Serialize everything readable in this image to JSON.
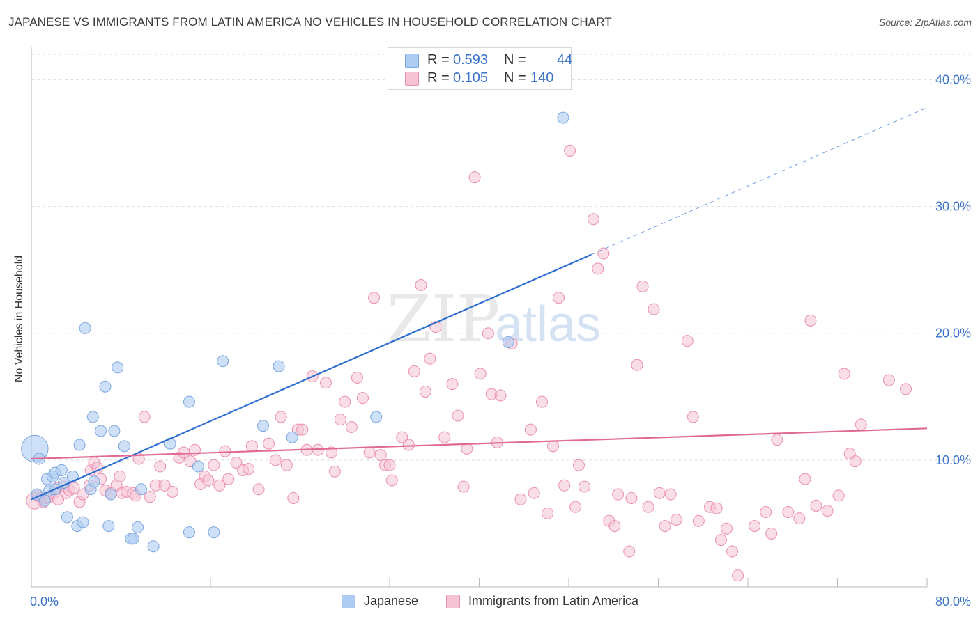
{
  "title": "JAPANESE VS IMMIGRANTS FROM LATIN AMERICA NO VEHICLES IN HOUSEHOLD CORRELATION CHART",
  "source": "Source: ZipAtlas.com",
  "watermark": {
    "zip": "ZIP",
    "atlas": "atlas"
  },
  "legend": {
    "rows": [
      {
        "r_label": "R =",
        "r_value": "0.593",
        "n_label": "N =",
        "n_value": "44"
      },
      {
        "r_label": "R =",
        "r_value": "0.105",
        "n_label": "N =",
        "n_value": "140"
      }
    ]
  },
  "colors": {
    "japanese_fill": "#aecbf1",
    "japanese_stroke": "#7aa6e0",
    "japanese_line": "#2e6fcf",
    "latin_fill": "#f6c3d4",
    "latin_stroke": "#ea8fae",
    "latin_line": "#e06a93",
    "tick_label": "#3a72c9",
    "grid": "#dddddd"
  },
  "chart_data": {
    "type": "scatter",
    "title": "JAPANESE VS IMMIGRANTS FROM LATIN AMERICA NO VEHICLES IN HOUSEHOLD CORRELATION CHART",
    "xlabel": "",
    "ylabel": "No Vehicles in Household",
    "xlim": [
      0,
      80
    ],
    "ylim": [
      0,
      42
    ],
    "x_tick_labels": [
      "0.0%",
      "80.0%"
    ],
    "y_ticks": [
      10,
      20,
      30,
      40
    ],
    "y_tick_labels": [
      "10.0%",
      "20.0%",
      "30.0%",
      "40.0%"
    ],
    "grid": true,
    "legend_position": "top-center",
    "series": [
      {
        "name": "Japanese",
        "r": 0.593,
        "n": 44,
        "trend": {
          "x0": 0,
          "y0": 6.9,
          "x1": 50,
          "y1": 26.2,
          "dashed_to_x": 80,
          "dashed_to_y": 37.8
        },
        "points": [
          [
            0.3,
            10.9,
            2.4
          ],
          [
            0.7,
            10.1,
            1
          ],
          [
            0.5,
            7.3,
            1
          ],
          [
            1.2,
            6.8,
            1
          ],
          [
            1.4,
            8.5,
            1
          ],
          [
            1.6,
            7.6,
            1
          ],
          [
            1.9,
            8.7,
            1
          ],
          [
            2.1,
            9.0,
            1
          ],
          [
            2.1,
            7.7,
            1
          ],
          [
            2.7,
            9.2,
            1
          ],
          [
            2.9,
            8.2,
            1
          ],
          [
            3.2,
            5.5,
            1
          ],
          [
            3.7,
            8.7,
            1
          ],
          [
            4.1,
            4.8,
            1
          ],
          [
            4.3,
            11.2,
            1
          ],
          [
            4.6,
            5.1,
            1
          ],
          [
            4.8,
            20.4,
            1
          ],
          [
            5.3,
            7.7,
            1
          ],
          [
            5.5,
            13.4,
            1
          ],
          [
            5.6,
            8.3,
            1
          ],
          [
            6.2,
            12.3,
            1
          ],
          [
            6.6,
            15.8,
            1
          ],
          [
            6.9,
            4.8,
            1
          ],
          [
            7.1,
            7.3,
            1
          ],
          [
            7.4,
            12.3,
            1
          ],
          [
            7.7,
            17.3,
            1
          ],
          [
            8.3,
            11.1,
            1
          ],
          [
            8.9,
            3.8,
            1
          ],
          [
            9.1,
            3.8,
            1
          ],
          [
            9.5,
            4.7,
            1
          ],
          [
            9.8,
            7.7,
            1
          ],
          [
            10.9,
            3.2,
            1
          ],
          [
            12.4,
            11.3,
            1
          ],
          [
            14.1,
            14.6,
            1
          ],
          [
            14.1,
            4.3,
            1
          ],
          [
            14.9,
            9.5,
            1
          ],
          [
            16.3,
            4.3,
            1
          ],
          [
            17.1,
            17.8,
            1
          ],
          [
            20.7,
            12.7,
            1
          ],
          [
            22.1,
            17.4,
            1
          ],
          [
            23.3,
            11.8,
            1
          ],
          [
            30.8,
            13.4,
            1
          ],
          [
            42.6,
            19.3,
            1
          ],
          [
            47.5,
            37.0,
            1
          ]
        ]
      },
      {
        "name": "Immigrants from Latin America",
        "r": 0.105,
        "n": 140,
        "trend": {
          "x0": 0,
          "y0": 10.1,
          "x1": 80,
          "y1": 12.5
        },
        "points": [
          [
            0.3,
            6.8,
            1.5
          ],
          [
            0.6,
            7.2,
            1
          ],
          [
            0.9,
            7.0,
            1
          ],
          [
            1.1,
            6.7,
            1
          ],
          [
            1.3,
            7.0,
            1
          ],
          [
            1.6,
            7.1,
            1
          ],
          [
            2.0,
            7.4,
            1
          ],
          [
            2.3,
            7.8,
            1
          ],
          [
            2.4,
            6.9,
            1
          ],
          [
            2.9,
            7.9,
            1
          ],
          [
            3.1,
            7.4,
            1
          ],
          [
            3.4,
            7.6,
            1
          ],
          [
            3.8,
            7.8,
            1
          ],
          [
            4.3,
            6.7,
            1
          ],
          [
            4.6,
            7.3,
            1
          ],
          [
            5.2,
            8.0,
            1
          ],
          [
            5.3,
            9.2,
            1
          ],
          [
            5.6,
            9.8,
            1
          ],
          [
            5.9,
            9.4,
            1
          ],
          [
            6.2,
            8.5,
            1
          ],
          [
            6.6,
            7.6,
            1
          ],
          [
            7.1,
            7.4,
            1
          ],
          [
            7.6,
            8.0,
            1
          ],
          [
            7.9,
            8.7,
            1
          ],
          [
            8.1,
            7.4,
            1
          ],
          [
            8.5,
            7.5,
            1
          ],
          [
            9.1,
            7.4,
            1
          ],
          [
            9.3,
            7.2,
            1
          ],
          [
            9.6,
            10.1,
            1
          ],
          [
            10.1,
            13.4,
            1
          ],
          [
            10.6,
            7.1,
            1
          ],
          [
            11.1,
            8.0,
            1
          ],
          [
            11.5,
            9.5,
            1
          ],
          [
            11.9,
            8.0,
            1
          ],
          [
            12.6,
            7.5,
            1
          ],
          [
            13.2,
            10.2,
            1
          ],
          [
            13.6,
            10.6,
            1
          ],
          [
            14.2,
            9.9,
            1
          ],
          [
            14.6,
            10.8,
            1
          ],
          [
            15.1,
            8.1,
            1
          ],
          [
            15.5,
            8.7,
            1
          ],
          [
            15.8,
            8.4,
            1
          ],
          [
            16.3,
            9.6,
            1
          ],
          [
            16.8,
            8.0,
            1
          ],
          [
            17.3,
            10.7,
            1
          ],
          [
            17.6,
            8.5,
            1
          ],
          [
            18.3,
            9.8,
            1
          ],
          [
            18.9,
            9.2,
            1
          ],
          [
            19.4,
            9.3,
            1
          ],
          [
            19.7,
            11.1,
            1
          ],
          [
            20.3,
            7.7,
            1
          ],
          [
            21.2,
            11.3,
            1
          ],
          [
            21.8,
            10.0,
            1
          ],
          [
            22.3,
            13.4,
            1
          ],
          [
            22.8,
            9.6,
            1
          ],
          [
            23.4,
            7.0,
            1
          ],
          [
            23.8,
            12.4,
            1
          ],
          [
            24.2,
            12.4,
            1
          ],
          [
            24.6,
            10.8,
            1
          ],
          [
            25.1,
            16.6,
            1
          ],
          [
            25.6,
            10.8,
            1
          ],
          [
            26.3,
            16.1,
            1
          ],
          [
            26.8,
            10.6,
            1
          ],
          [
            27.1,
            9.1,
            1
          ],
          [
            27.6,
            13.2,
            1
          ],
          [
            28.0,
            14.6,
            1
          ],
          [
            28.6,
            12.6,
            1
          ],
          [
            29.1,
            16.5,
            1
          ],
          [
            29.6,
            14.9,
            1
          ],
          [
            30.2,
            10.6,
            1
          ],
          [
            30.6,
            22.8,
            1
          ],
          [
            31.2,
            10.4,
            1
          ],
          [
            31.6,
            9.6,
            1
          ],
          [
            32.0,
            9.6,
            1
          ],
          [
            32.2,
            8.4,
            1
          ],
          [
            33.1,
            11.8,
            1
          ],
          [
            33.7,
            11.2,
            1
          ],
          [
            34.2,
            17.0,
            1
          ],
          [
            34.8,
            23.8,
            1
          ],
          [
            35.2,
            15.4,
            1
          ],
          [
            35.6,
            18.0,
            1
          ],
          [
            36.1,
            20.5,
            1
          ],
          [
            36.9,
            11.8,
            1
          ],
          [
            37.6,
            16.0,
            1
          ],
          [
            38.1,
            13.5,
            1
          ],
          [
            38.6,
            7.9,
            1
          ],
          [
            38.9,
            10.9,
            1
          ],
          [
            39.6,
            32.3,
            1
          ],
          [
            40.1,
            16.8,
            1
          ],
          [
            40.8,
            20.0,
            1
          ],
          [
            41.1,
            15.2,
            1
          ],
          [
            41.6,
            11.4,
            1
          ],
          [
            41.9,
            15.1,
            1
          ],
          [
            42.9,
            19.2,
            1
          ],
          [
            43.7,
            6.9,
            1
          ],
          [
            44.6,
            12.4,
            1
          ],
          [
            44.9,
            7.4,
            1
          ],
          [
            45.6,
            14.6,
            1
          ],
          [
            46.1,
            5.8,
            1
          ],
          [
            46.6,
            11.1,
            1
          ],
          [
            47.1,
            22.8,
            1
          ],
          [
            47.6,
            8.0,
            1
          ],
          [
            48.1,
            34.4,
            1
          ],
          [
            48.6,
            6.3,
            1
          ],
          [
            48.9,
            9.6,
            1
          ],
          [
            49.4,
            7.9,
            1
          ],
          [
            50.2,
            29.0,
            1
          ],
          [
            50.6,
            25.1,
            1
          ],
          [
            51.1,
            26.3,
            1
          ],
          [
            51.6,
            5.2,
            1
          ],
          [
            52.1,
            4.8,
            1
          ],
          [
            52.4,
            7.3,
            1
          ],
          [
            53.4,
            2.8,
            1
          ],
          [
            53.6,
            7.0,
            1
          ],
          [
            54.1,
            17.5,
            1
          ],
          [
            54.6,
            23.7,
            1
          ],
          [
            55.1,
            6.3,
            1
          ],
          [
            55.6,
            21.9,
            1
          ],
          [
            56.1,
            7.4,
            1
          ],
          [
            56.6,
            4.8,
            1
          ],
          [
            57.1,
            7.3,
            1
          ],
          [
            57.6,
            5.3,
            1
          ],
          [
            58.6,
            19.4,
            1
          ],
          [
            59.1,
            13.4,
            1
          ],
          [
            59.6,
            5.2,
            1
          ],
          [
            60.6,
            6.3,
            1
          ],
          [
            61.2,
            6.2,
            1
          ],
          [
            61.6,
            3.7,
            1
          ],
          [
            62.1,
            4.6,
            1
          ],
          [
            62.6,
            2.8,
            1
          ],
          [
            63.1,
            0.9,
            1
          ],
          [
            64.6,
            4.8,
            1
          ],
          [
            65.6,
            5.9,
            1
          ],
          [
            66.1,
            4.2,
            1
          ],
          [
            66.6,
            11.6,
            1
          ],
          [
            67.6,
            5.9,
            1
          ],
          [
            68.6,
            5.4,
            1
          ],
          [
            69.1,
            8.5,
            1
          ],
          [
            69.6,
            21.0,
            1
          ],
          [
            70.1,
            6.4,
            1
          ],
          [
            71.1,
            6.0,
            1
          ],
          [
            72.1,
            7.2,
            1
          ],
          [
            72.6,
            16.8,
            1
          ],
          [
            73.1,
            10.5,
            1
          ],
          [
            73.6,
            9.9,
            1
          ],
          [
            74.1,
            12.8,
            1
          ],
          [
            76.6,
            16.3,
            1
          ],
          [
            78.1,
            15.6,
            1
          ]
        ]
      }
    ]
  },
  "bottom_legend": {
    "items": [
      {
        "label": "Japanese"
      },
      {
        "label": "Immigrants from Latin America"
      }
    ]
  }
}
